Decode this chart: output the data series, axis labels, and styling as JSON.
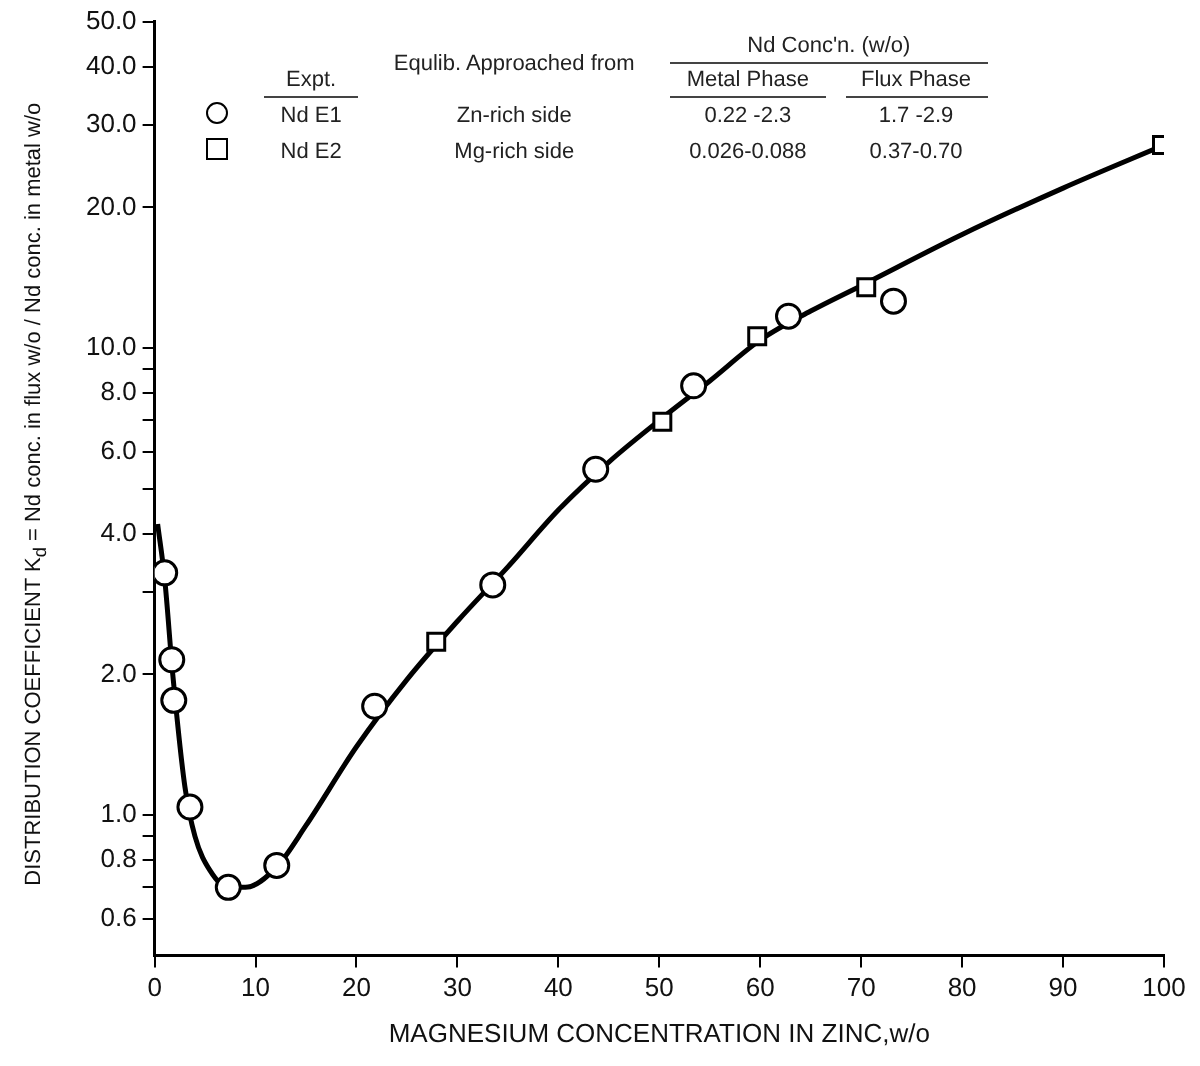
{
  "chart_data": {
    "type": "scatter",
    "xlabel": "MAGNESIUM CONCENTRATION IN ZINC,w/o",
    "ylabel": "DISTRIBUTION COEFFICIENT K$_{d}$ = Nd conc. in flux w/o / Nd conc. in metal w/o",
    "log": "y",
    "xlim": [
      0,
      100
    ],
    "ylim": [
      0.5,
      50
    ],
    "xticks": [
      0,
      10,
      20,
      30,
      40,
      50,
      60,
      70,
      80,
      90,
      100
    ],
    "yticks": [
      {
        "value": 0.6,
        "label": "0.6"
      },
      {
        "value": 0.7,
        "label": null
      },
      {
        "value": 0.8,
        "label": "0.8"
      },
      {
        "value": 0.9,
        "label": null
      },
      {
        "value": 1,
        "label": "1.0"
      },
      {
        "value": 2,
        "label": "2.0"
      },
      {
        "value": 3,
        "label": null
      },
      {
        "value": 4,
        "label": "4.0"
      },
      {
        "value": 5,
        "label": null
      },
      {
        "value": 6,
        "label": "6.0"
      },
      {
        "value": 7,
        "label": null
      },
      {
        "value": 8,
        "label": "8.0"
      },
      {
        "value": 9,
        "label": null
      },
      {
        "value": 10,
        "label": "10.0"
      },
      {
        "value": 20,
        "label": "20.0"
      },
      {
        "value": 30,
        "label": "30.0"
      },
      {
        "value": 40,
        "label": "40.0"
      },
      {
        "value": 50,
        "label": "50.0"
      }
    ],
    "grid": false,
    "legend": "top left",
    "annotations": [
      "Expt.",
      "Equlib. Approached from",
      "Nd Conc'n. (w/o)",
      "Metal Phase",
      "Flux Phase",
      "Zn-rich side",
      "0.22 -2.3",
      "1.7 -2.9",
      "Mg-rich side",
      "0.026-0.088",
      "0.37-0.70"
    ],
    "series": [
      {
        "name": "Nd E1",
        "marker": "circle",
        "color": "#000000",
        "x": [
          1.0,
          1.7,
          1.9,
          3.5,
          7.3,
          12.1,
          21.8,
          33.5,
          43.7,
          53.4,
          62.8,
          73.2
        ],
        "values": [
          3.3,
          2.15,
          1.76,
          1.04,
          0.7,
          0.78,
          1.71,
          3.11,
          5.5,
          8.3,
          11.7,
          12.6
        ]
      },
      {
        "name": "Nd E2",
        "marker": "square",
        "color": "#000000",
        "x": [
          27.9,
          50.3,
          59.7,
          70.5,
          99.8
        ],
        "values": [
          2.35,
          6.95,
          10.6,
          13.5,
          27.2
        ]
      },
      {
        "type": "line",
        "marker": "none",
        "color": "#000000",
        "x": [
          0.3,
          1,
          1.8,
          3,
          4,
          5.5,
          7.3,
          9,
          12,
          15,
          20,
          25,
          30,
          35,
          40,
          45,
          50,
          55,
          60,
          65,
          70,
          80,
          90,
          100
        ],
        "values": [
          4.2,
          3.2,
          2.0,
          1.15,
          0.9,
          0.76,
          0.7,
          0.7,
          0.77,
          0.95,
          1.4,
          1.95,
          2.6,
          3.4,
          4.5,
          5.7,
          7.0,
          8.5,
          10.4,
          12.0,
          13.6,
          17.5,
          22,
          27.2
        ]
      }
    ]
  }
}
